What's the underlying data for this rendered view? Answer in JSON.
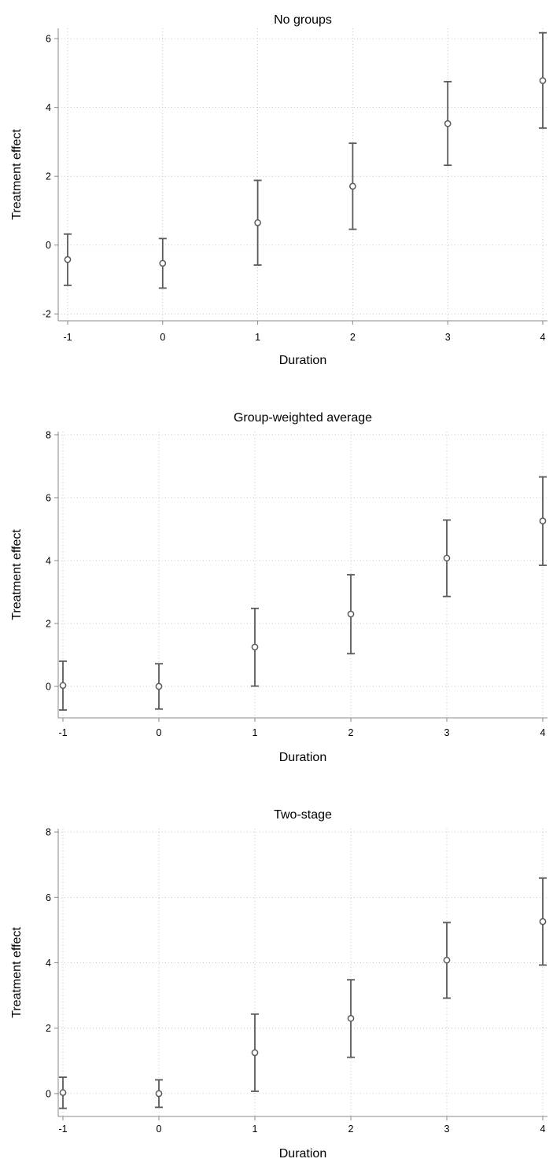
{
  "chart_data": [
    {
      "type": "scatter",
      "title": "No groups",
      "xlabel": "Duration",
      "ylabel": "Treatment effect",
      "x": [
        -1,
        0,
        1,
        2,
        3,
        4
      ],
      "y": [
        -0.42,
        -0.53,
        0.65,
        1.71,
        3.53,
        4.78
      ],
      "ci_lower": [
        -1.17,
        -1.25,
        -0.58,
        0.46,
        2.32,
        3.4
      ],
      "ci_upper": [
        0.32,
        0.19,
        1.88,
        2.96,
        4.75,
        6.17
      ],
      "xticks": [
        -1,
        0,
        1,
        2,
        3,
        4
      ],
      "yticks": [
        -2,
        0,
        2,
        4,
        6
      ],
      "xlim": [
        -1,
        4
      ],
      "ylim": [
        -2.2,
        6.3
      ],
      "grid": true
    },
    {
      "type": "scatter",
      "title": "Group-weighted average",
      "xlabel": "Duration",
      "ylabel": "Treatment effect",
      "x": [
        -1,
        0,
        1,
        2,
        3,
        4
      ],
      "y": [
        0.03,
        0.0,
        1.25,
        2.3,
        4.08,
        5.26
      ],
      "ci_lower": [
        -0.75,
        -0.72,
        0.01,
        1.04,
        2.86,
        3.85
      ],
      "ci_upper": [
        0.8,
        0.72,
        2.48,
        3.55,
        5.29,
        6.66
      ],
      "xticks": [
        -1,
        0,
        1,
        2,
        3,
        4
      ],
      "yticks": [
        0,
        2,
        4,
        6,
        8
      ],
      "xlim": [
        -1,
        4
      ],
      "ylim": [
        -1.0,
        8.1
      ],
      "grid": true
    },
    {
      "type": "scatter",
      "title": "Two-stage",
      "xlabel": "Duration",
      "ylabel": "Treatment effect",
      "x": [
        -1,
        0,
        1,
        2,
        3,
        4
      ],
      "y": [
        0.03,
        0.0,
        1.25,
        2.3,
        4.08,
        5.26
      ],
      "ci_lower": [
        -0.45,
        -0.42,
        0.07,
        1.11,
        2.92,
        3.93
      ],
      "ci_upper": [
        0.5,
        0.42,
        2.43,
        3.48,
        5.23,
        6.59
      ],
      "xticks": [
        -1,
        0,
        1,
        2,
        3,
        4
      ],
      "yticks": [
        0,
        2,
        4,
        6,
        8
      ],
      "xlim": [
        -1,
        4
      ],
      "ylim": [
        -0.7,
        8.1
      ],
      "grid": true
    }
  ]
}
